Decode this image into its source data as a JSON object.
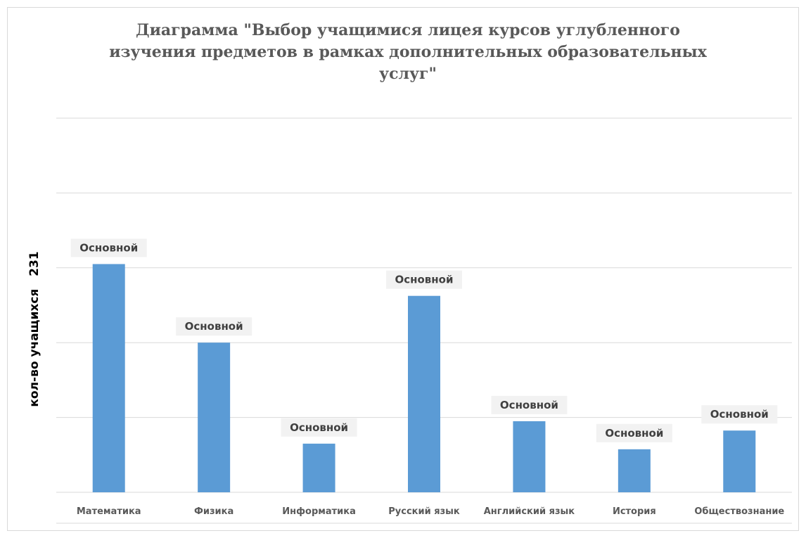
{
  "chart_data": {
    "type": "bar",
    "title": "Диаграмма \"Выбор учащимися лицея курсов углубленного изучения предметов в рамках дополнительных образовательных услуг\"",
    "title_lines": [
      "Диаграмма \"Выбор учащимися лицея курсов углубленного",
      "изучения предметов в рамках дополнительных образовательных",
      "услуг\""
    ],
    "ylabel": "кол-во учащихся",
    "ylabel_value": "231",
    "xlabel": "",
    "categories": [
      "Математика",
      "Физика",
      "Информатика",
      "Русский язык",
      "Английский язык",
      "История",
      "Обществознание"
    ],
    "values": [
      61,
      40,
      13,
      52.5,
      19,
      11.5,
      16.5
    ],
    "data_labels": [
      "Основной",
      "Основной",
      "Основной",
      "Основной",
      "Основной",
      "Основной",
      "Основной"
    ],
    "ylim": [
      0,
      100
    ],
    "grid": true,
    "legend": "none",
    "bar_color": "#5b9bd5"
  }
}
